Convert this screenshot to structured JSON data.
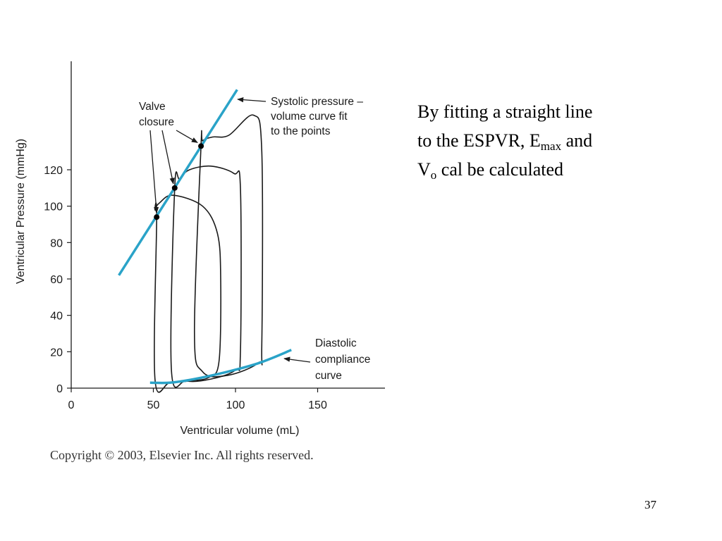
{
  "slide": {
    "text_line1": "By fitting a straight line",
    "text_line2_a": "to the ESPVR, E",
    "text_line2_sub": "max",
    "text_line2_b": " and",
    "text_line3_a": "V",
    "text_line3_sub": "o",
    "text_line3_b": " cal be calculated",
    "page_number": "37",
    "copyright": "Copyright © 2003, Elsevier Inc. All rights reserved."
  },
  "chart_data": {
    "type": "line",
    "title": "",
    "xlabel": "Ventricular volume (mL)",
    "ylabel": "Ventricular Pressure (mmHg)",
    "xlim": [
      0,
      195
    ],
    "ylim": [
      0,
      180
    ],
    "x_ticks": [
      0,
      50,
      100,
      150
    ],
    "y_ticks": [
      0,
      20,
      40,
      60,
      80,
      100,
      120
    ],
    "colors": {
      "fit_line": "#2aa3c8",
      "loops": "#1a1a1a"
    },
    "series": [
      {
        "name": "Systolic pressure – volume curve fit",
        "x": [
          29,
          101
        ],
        "y": [
          62,
          164
        ]
      },
      {
        "name": "Diastolic compliance curve",
        "x": [
          48,
          60,
          75,
          95,
          115,
          134
        ],
        "y": [
          3,
          3,
          5,
          9,
          14,
          21
        ]
      },
      {
        "name": "",
        "x": [
          52,
          51,
          60,
          72,
          84,
          90,
          91,
          89,
          80,
          62,
          54,
          51,
          52
        ],
        "y": [
          94,
          5,
          3,
          4,
          6,
          15,
          60,
          85,
          100,
          106,
          102,
          98,
          94
        ]
      },
      {
        "name": "",
        "x": [
          63,
          61,
          70,
          85,
          100,
          103,
          103,
          99,
          85,
          72,
          66,
          63
        ],
        "y": [
          110,
          10,
          4,
          5,
          10,
          20,
          110,
          118,
          122,
          120,
          115,
          110
        ]
      },
      {
        "name": "",
        "x": [
          79,
          75,
          80,
          95,
          114,
          116,
          116,
          111,
          96,
          86,
          80,
          79
        ],
        "y": [
          133,
          30,
          9,
          7,
          14,
          24,
          130,
          150,
          139,
          138,
          136,
          133
        ]
      }
    ],
    "points": [
      {
        "x": 52,
        "y": 94
      },
      {
        "x": 63,
        "y": 110
      },
      {
        "x": 79,
        "y": 133
      }
    ],
    "annotations": [
      {
        "lines": [
          "Valve",
          "closure"
        ]
      },
      {
        "lines": [
          "Systolic pressure –",
          "volume curve fit",
          "to the points"
        ]
      },
      {
        "lines": [
          "Diastolic",
          "compliance",
          "curve"
        ]
      }
    ],
    "grid": false,
    "legend": "none"
  }
}
